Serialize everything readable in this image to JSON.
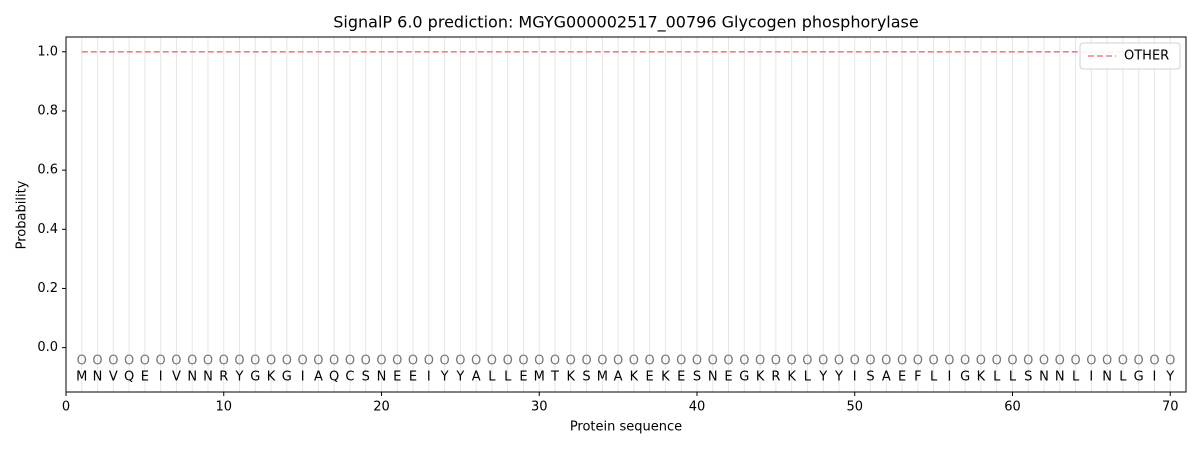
{
  "chart_data": {
    "type": "line",
    "title": "SignalP 6.0 prediction: MGYG000002517_00796 Glycogen phosphorylase",
    "x_label": "Protein sequence",
    "y_label": "Probability",
    "x": [
      1,
      2,
      3,
      4,
      5,
      6,
      7,
      8,
      9,
      10,
      11,
      12,
      13,
      14,
      15,
      16,
      17,
      18,
      19,
      20,
      21,
      22,
      23,
      24,
      25,
      26,
      27,
      28,
      29,
      30,
      31,
      32,
      33,
      34,
      35,
      36,
      37,
      38,
      39,
      40,
      41,
      42,
      43,
      44,
      45,
      46,
      47,
      48,
      49,
      50,
      51,
      52,
      53,
      54,
      55,
      56,
      57,
      58,
      59,
      60,
      61,
      62,
      63,
      64,
      65,
      66,
      67,
      68,
      69,
      70
    ],
    "residues": [
      "M",
      "N",
      "V",
      "Q",
      "E",
      "I",
      "V",
      "N",
      "N",
      "R",
      "Y",
      "G",
      "K",
      "G",
      "I",
      "A",
      "Q",
      "C",
      "S",
      "N",
      "E",
      "E",
      "I",
      "Y",
      "Y",
      "A",
      "L",
      "L",
      "E",
      "M",
      "T",
      "K",
      "S",
      "M",
      "A",
      "K",
      "E",
      "K",
      "E",
      "S",
      "N",
      "E",
      "G",
      "K",
      "R",
      "K",
      "L",
      "Y",
      "Y",
      "I",
      "S",
      "A",
      "E",
      "F",
      "L",
      "I",
      "G",
      "K",
      "L",
      "L",
      "S",
      "N",
      "N",
      "L",
      "I",
      "N",
      "L",
      "G",
      "I",
      "Y"
    ],
    "residue_labels": [
      "O",
      "O",
      "O",
      "O",
      "O",
      "O",
      "O",
      "O",
      "O",
      "O",
      "O",
      "O",
      "O",
      "O",
      "O",
      "O",
      "O",
      "O",
      "O",
      "O",
      "O",
      "O",
      "O",
      "O",
      "O",
      "O",
      "O",
      "O",
      "O",
      "O",
      "O",
      "O",
      "O",
      "O",
      "O",
      "O",
      "O",
      "O",
      "O",
      "O",
      "O",
      "O",
      "O",
      "O",
      "O",
      "O",
      "O",
      "O",
      "O",
      "O",
      "O",
      "O",
      "O",
      "O",
      "O",
      "O",
      "O",
      "O",
      "O",
      "O",
      "O",
      "O",
      "O",
      "O",
      "O",
      "O",
      "O",
      "O",
      "O",
      "O"
    ],
    "series": [
      {
        "name": "OTHER",
        "color": "#f08080",
        "dashed": true,
        "values": [
          1,
          1,
          1,
          1,
          1,
          1,
          1,
          1,
          1,
          1,
          1,
          1,
          1,
          1,
          1,
          1,
          1,
          1,
          1,
          1,
          1,
          1,
          1,
          1,
          1,
          1,
          1,
          1,
          1,
          1,
          1,
          1,
          1,
          1,
          1,
          1,
          1,
          1,
          1,
          1,
          1,
          1,
          1,
          1,
          1,
          1,
          1,
          1,
          1,
          1,
          1,
          1,
          1,
          1,
          1,
          1,
          1,
          1,
          1,
          1,
          1,
          1,
          1,
          1,
          1,
          1,
          1,
          1,
          1,
          1
        ]
      }
    ],
    "xlim": [
      0,
      71
    ],
    "ylim": [
      -0.15,
      1.05
    ],
    "xticks": [
      0,
      10,
      20,
      30,
      40,
      50,
      60,
      70
    ],
    "yticks": [
      {
        "value": 0,
        "label": "0.0"
      },
      {
        "value": 0.2,
        "label": "0.2"
      },
      {
        "value": 0.4,
        "label": "0.4"
      },
      {
        "value": 0.6,
        "label": "0.6"
      },
      {
        "value": 0.8,
        "label": "0.8"
      },
      {
        "value": 1,
        "label": "1.0"
      }
    ],
    "legend": "upper right"
  }
}
